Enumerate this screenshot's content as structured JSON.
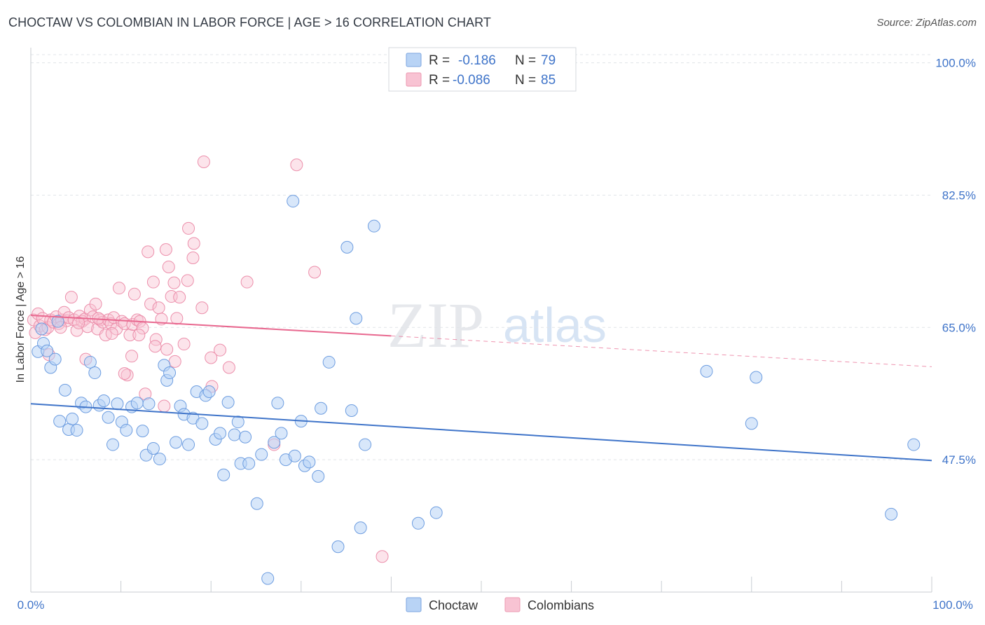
{
  "title": "CHOCTAW VS COLOMBIAN IN LABOR FORCE | AGE > 16 CORRELATION CHART",
  "source": "Source: ZipAtlas.com",
  "watermark": {
    "zip": "ZIP",
    "atlas": "atlas"
  },
  "colors": {
    "blue": "#3f74c9",
    "blue_fill": "#b8d3f5",
    "pink": "#e8688f",
    "pink_fill": "#f8c3d3"
  },
  "legend": {
    "r_label": "R =",
    "n_label": "N =",
    "rows": [
      {
        "r": "-0.186",
        "n": "79"
      },
      {
        "r": "-0.086",
        "n": "85"
      }
    ]
  },
  "chart_data": {
    "type": "scatter",
    "title": "CHOCTAW VS COLOMBIAN IN LABOR FORCE | AGE > 16 CORRELATION CHART",
    "ylabel": "In Labor Force | Age > 16",
    "xlabel": "",
    "xlim": [
      0,
      100
    ],
    "ylim": [
      30,
      102
    ],
    "x_tick_labels": [
      "0.0%",
      "100.0%"
    ],
    "y_ticks": [
      47.5,
      65.0,
      82.5,
      100.0
    ],
    "y_tick_labels": [
      "47.5%",
      "65.0%",
      "82.5%",
      "100.0%"
    ],
    "grid": true,
    "legend_position": "top-center",
    "series": [
      {
        "name": "Choctaw",
        "color": "#3f74c9",
        "trend": {
          "x0": 0,
          "y0": 54.9,
          "x1": 100,
          "y1": 47.4,
          "solid_until": 100
        },
        "points": [
          [
            0.8,
            61.8
          ],
          [
            1.4,
            62.9
          ],
          [
            1.8,
            61.9
          ],
          [
            2.2,
            59.7
          ],
          [
            2.7,
            60.8
          ],
          [
            3.0,
            65.8
          ],
          [
            3.8,
            56.7
          ],
          [
            3.2,
            52.6
          ],
          [
            4.2,
            51.5
          ],
          [
            4.6,
            52.9
          ],
          [
            5.1,
            51.4
          ],
          [
            5.6,
            55.0
          ],
          [
            6.1,
            54.5
          ],
          [
            6.6,
            60.4
          ],
          [
            7.1,
            59.0
          ],
          [
            7.6,
            54.7
          ],
          [
            8.1,
            55.3
          ],
          [
            8.6,
            53.1
          ],
          [
            9.1,
            49.5
          ],
          [
            9.6,
            54.9
          ],
          [
            10.1,
            52.5
          ],
          [
            10.6,
            51.4
          ],
          [
            11.2,
            54.5
          ],
          [
            11.8,
            55.0
          ],
          [
            12.4,
            51.3
          ],
          [
            12.8,
            48.1
          ],
          [
            13.1,
            54.9
          ],
          [
            13.6,
            49.0
          ],
          [
            14.3,
            47.6
          ],
          [
            14.8,
            60.0
          ],
          [
            15.1,
            58.0
          ],
          [
            15.4,
            59.0
          ],
          [
            16.1,
            49.8
          ],
          [
            16.6,
            54.6
          ],
          [
            17.0,
            53.5
          ],
          [
            17.5,
            49.5
          ],
          [
            18.0,
            53.0
          ],
          [
            18.4,
            56.5
          ],
          [
            19.0,
            52.3
          ],
          [
            19.4,
            56.0
          ],
          [
            19.8,
            56.5
          ],
          [
            20.5,
            50.2
          ],
          [
            21.0,
            51.0
          ],
          [
            21.4,
            45.5
          ],
          [
            21.9,
            55.1
          ],
          [
            22.6,
            50.8
          ],
          [
            23.0,
            52.5
          ],
          [
            23.3,
            47.0
          ],
          [
            23.8,
            50.5
          ],
          [
            24.2,
            47.0
          ],
          [
            25.1,
            41.7
          ],
          [
            25.6,
            48.2
          ],
          [
            26.3,
            31.8
          ],
          [
            27.0,
            49.8
          ],
          [
            27.4,
            55.0
          ],
          [
            27.8,
            51.0
          ],
          [
            28.3,
            47.5
          ],
          [
            29.1,
            81.7
          ],
          [
            29.3,
            48.0
          ],
          [
            30.0,
            52.6
          ],
          [
            30.4,
            46.7
          ],
          [
            30.9,
            47.2
          ],
          [
            31.9,
            45.3
          ],
          [
            32.2,
            54.3
          ],
          [
            33.1,
            60.4
          ],
          [
            34.1,
            36.0
          ],
          [
            35.1,
            75.6
          ],
          [
            35.6,
            54.0
          ],
          [
            36.1,
            66.2
          ],
          [
            36.6,
            38.5
          ],
          [
            37.1,
            49.5
          ],
          [
            38.1,
            78.4
          ],
          [
            43.0,
            39.1
          ],
          [
            45.0,
            40.5
          ],
          [
            75.0,
            59.2
          ],
          [
            80.0,
            52.3
          ],
          [
            80.5,
            58.4
          ],
          [
            95.5,
            40.3
          ],
          [
            98.0,
            49.5
          ],
          [
            1.2,
            64.8
          ]
        ]
      },
      {
        "name": "Colombians",
        "color": "#e8688f",
        "trend": {
          "x0": 0,
          "y0": 66.6,
          "x1": 100,
          "y1": 59.8,
          "solid_until": 40
        },
        "points": [
          [
            0.3,
            66.0
          ],
          [
            0.5,
            64.3
          ],
          [
            0.8,
            66.8
          ],
          [
            1.0,
            65.2
          ],
          [
            1.3,
            66.2
          ],
          [
            1.6,
            64.7
          ],
          [
            1.9,
            65.0
          ],
          [
            2.2,
            66.0
          ],
          [
            2.5,
            65.7
          ],
          [
            2.8,
            66.4
          ],
          [
            3.1,
            65.5
          ],
          [
            3.4,
            66.0
          ],
          [
            3.7,
            67.0
          ],
          [
            4.0,
            65.9
          ],
          [
            4.2,
            66.3
          ],
          [
            4.5,
            69.0
          ],
          [
            4.8,
            66.0
          ],
          [
            5.1,
            64.6
          ],
          [
            5.4,
            66.5
          ],
          [
            5.7,
            65.8
          ],
          [
            6.0,
            66.1
          ],
          [
            6.3,
            65.1
          ],
          [
            6.6,
            67.3
          ],
          [
            6.9,
            66.4
          ],
          [
            7.2,
            68.1
          ],
          [
            7.4,
            64.8
          ],
          [
            7.7,
            66.0
          ],
          [
            8.0,
            65.7
          ],
          [
            8.3,
            64.0
          ],
          [
            8.6,
            66.0
          ],
          [
            8.9,
            65.5
          ],
          [
            9.2,
            66.3
          ],
          [
            9.5,
            64.8
          ],
          [
            9.8,
            70.2
          ],
          [
            10.1,
            65.8
          ],
          [
            10.4,
            65.5
          ],
          [
            10.7,
            58.7
          ],
          [
            11.0,
            64.0
          ],
          [
            11.3,
            65.4
          ],
          [
            11.5,
            69.4
          ],
          [
            11.8,
            66.0
          ],
          [
            12.1,
            65.8
          ],
          [
            12.4,
            64.9
          ],
          [
            12.7,
            56.2
          ],
          [
            13.0,
            75.0
          ],
          [
            13.3,
            68.1
          ],
          [
            13.6,
            71.0
          ],
          [
            13.9,
            63.4
          ],
          [
            14.2,
            67.6
          ],
          [
            14.5,
            66.1
          ],
          [
            14.8,
            54.6
          ],
          [
            15.1,
            62.1
          ],
          [
            15.3,
            73.0
          ],
          [
            15.6,
            69.1
          ],
          [
            15.9,
            70.9
          ],
          [
            16.2,
            66.2
          ],
          [
            16.5,
            69.0
          ],
          [
            17.0,
            62.8
          ],
          [
            17.5,
            78.1
          ],
          [
            18.1,
            76.1
          ],
          [
            19.2,
            86.9
          ],
          [
            20.1,
            57.2
          ],
          [
            22.0,
            59.7
          ],
          [
            24.0,
            71.0
          ],
          [
            27.0,
            49.5
          ],
          [
            29.5,
            86.5
          ],
          [
            31.5,
            72.3
          ],
          [
            39.0,
            34.7
          ],
          [
            2.0,
            61.4
          ],
          [
            3.3,
            65.0
          ],
          [
            5.3,
            65.6
          ],
          [
            6.1,
            60.8
          ],
          [
            7.5,
            66.2
          ],
          [
            9.0,
            64.2
          ],
          [
            10.4,
            58.9
          ],
          [
            11.2,
            61.2
          ],
          [
            12.0,
            64.0
          ],
          [
            13.8,
            62.5
          ],
          [
            15.0,
            75.3
          ],
          [
            16.0,
            60.5
          ],
          [
            17.4,
            71.2
          ],
          [
            18.0,
            74.2
          ],
          [
            19.0,
            67.6
          ],
          [
            20.0,
            61.0
          ],
          [
            21.0,
            62.0
          ]
        ]
      }
    ]
  },
  "bottom_legend": [
    {
      "label": "Choctaw"
    },
    {
      "label": "Colombians"
    }
  ]
}
